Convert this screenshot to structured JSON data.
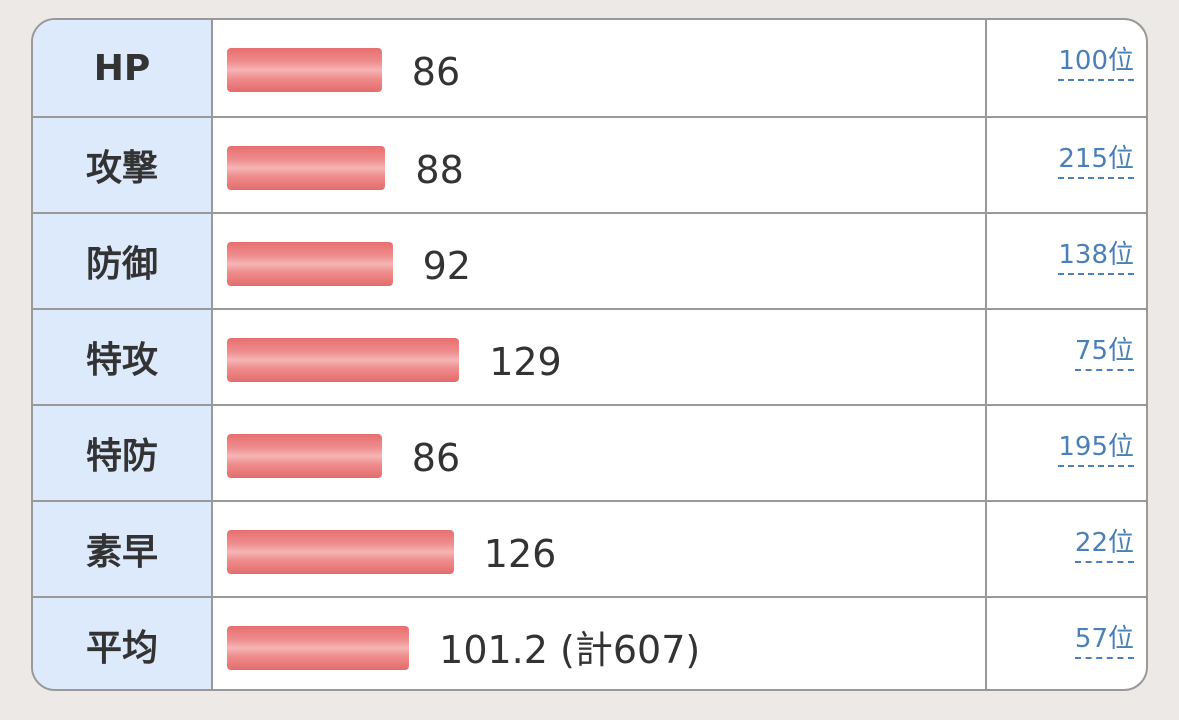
{
  "colors": {
    "bar": "#e86f6f",
    "label_bg": "#ddeafc",
    "rank_link": "#4a7fb8"
  },
  "stats": [
    {
      "label": "HP",
      "value": 86,
      "display": "86",
      "rank": "100位"
    },
    {
      "label": "攻撃",
      "value": 88,
      "display": "88",
      "rank": "215位"
    },
    {
      "label": "防御",
      "value": 92,
      "display": "92",
      "rank": "138位"
    },
    {
      "label": "特攻",
      "value": 129,
      "display": "129",
      "rank": "75位"
    },
    {
      "label": "特防",
      "value": 86,
      "display": "86",
      "rank": "195位"
    },
    {
      "label": "素早",
      "value": 126,
      "display": "126",
      "rank": "22位"
    },
    {
      "label": "平均",
      "value": 101.2,
      "display": "101.2 (計607)",
      "rank": "57位"
    }
  ]
}
